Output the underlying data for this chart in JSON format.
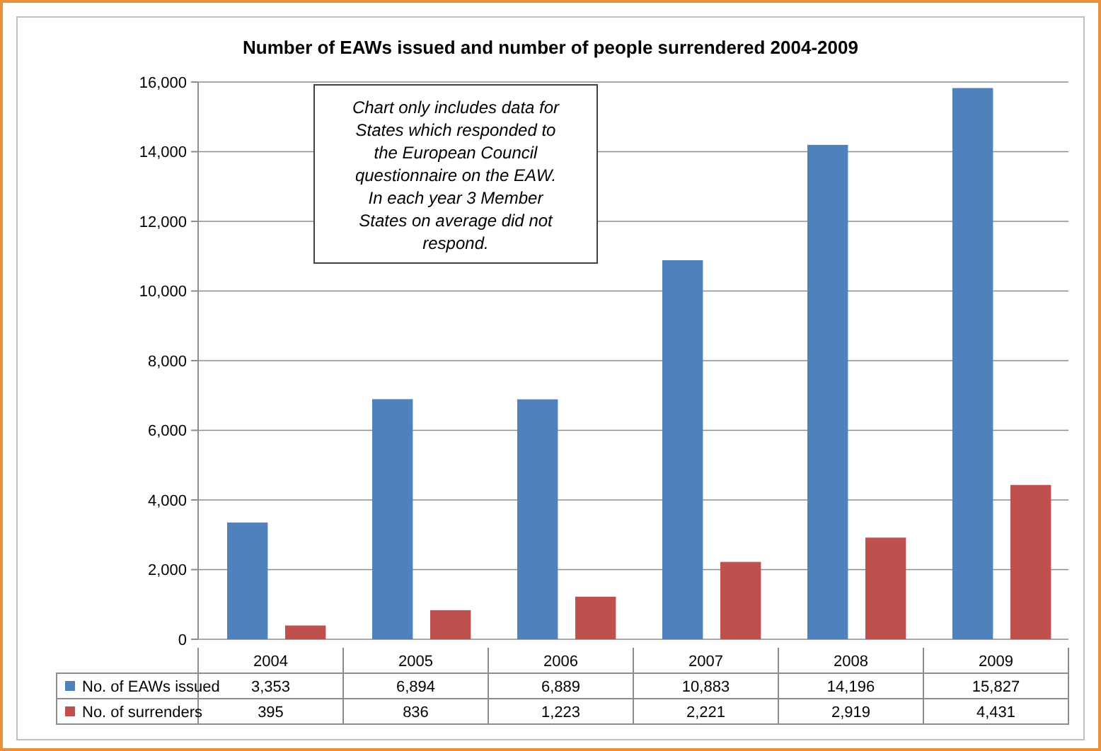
{
  "chart_data": {
    "type": "bar",
    "title": "Number of EAWs issued and number of people surrendered 2004-2009",
    "categories": [
      "2004",
      "2005",
      "2006",
      "2007",
      "2008",
      "2009"
    ],
    "series": [
      {
        "name": "No. of EAWs issued",
        "color": "#4f81bd",
        "values": [
          3353,
          6894,
          6889,
          10883,
          14196,
          15827
        ],
        "value_labels": [
          "3,353",
          "6,894",
          "6,889",
          "10,883",
          "14,196",
          "15,827"
        ]
      },
      {
        "name": "No. of surrenders",
        "color": "#c0504d",
        "values": [
          395,
          836,
          1223,
          2221,
          2919,
          4431
        ],
        "value_labels": [
          "395",
          "836",
          "1,223",
          "2,221",
          "2,919",
          "4,431"
        ]
      }
    ],
    "ylim": [
      0,
      16000
    ],
    "yticks": [
      {
        "value": 0,
        "label": "0"
      },
      {
        "value": 2000,
        "label": "2,000"
      },
      {
        "value": 4000,
        "label": "4,000"
      },
      {
        "value": 6000,
        "label": "6,000"
      },
      {
        "value": 8000,
        "label": "8,000"
      },
      {
        "value": 10000,
        "label": "10,000"
      },
      {
        "value": 12000,
        "label": "12,000"
      },
      {
        "value": 14000,
        "label": "14,000"
      },
      {
        "value": 16000,
        "label": "16,000"
      }
    ],
    "grid": "y",
    "legend": "bottom",
    "annotations": [
      "Chart only includes data for\nStates which responded to\nthe European Council\nquestionnaire on the EAW.\nIn each year 3 Member\nStates on average did not\nrespond."
    ]
  }
}
